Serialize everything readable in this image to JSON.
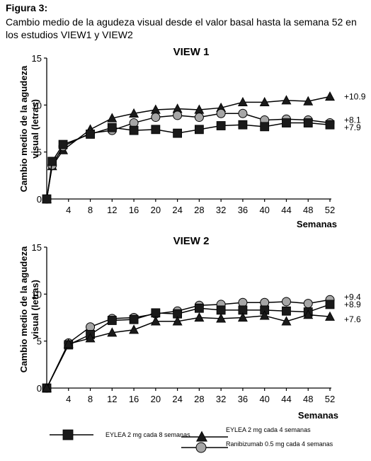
{
  "figure": {
    "label": "Figura 3:",
    "caption": "Cambio medio de la agudeza visual desde el valor basal hasta la semana 52 en los estudios VIEW1 y VIEW2"
  },
  "legend": [
    {
      "key": "eylea8",
      "label": "EYLEA 2 mg cada 8 semanas",
      "marker": "square"
    },
    {
      "key": "eylea4",
      "label": "EYLEA 2 mg cada 4 semanas",
      "marker": "triangle"
    },
    {
      "key": "rani",
      "label": "Ranibizumab 0.5 mg cada 4 semanas",
      "marker": "circle"
    }
  ],
  "colors": {
    "line": "#000000",
    "square": "#1a1a1a",
    "triangle": "#1a1a1a",
    "circle": "#a6a6a6"
  },
  "chart_data": [
    {
      "type": "line",
      "title": "VIEW 1",
      "xlabel": "Semanas",
      "ylabel": "Cambio medio de la agudeza visual (letras)",
      "xlim": [
        0,
        52
      ],
      "ylim": [
        0,
        15
      ],
      "xticks": [
        4,
        8,
        12,
        16,
        20,
        24,
        28,
        32,
        36,
        40,
        44,
        48,
        52
      ],
      "yticks": [
        0,
        5,
        10,
        15
      ],
      "series": [
        {
          "key": "eylea4",
          "marker": "triangle",
          "x": [
            0,
            1,
            3,
            8,
            12,
            16,
            20,
            24,
            28,
            32,
            36,
            40,
            44,
            48,
            52
          ],
          "y": [
            0,
            3.5,
            5.2,
            7.4,
            8.6,
            9.1,
            9.5,
            9.6,
            9.5,
            9.7,
            10.3,
            10.3,
            10.5,
            10.4,
            10.9
          ],
          "end_label": "+10.9"
        },
        {
          "key": "rani",
          "marker": "circle",
          "x": [
            0,
            1,
            3,
            8,
            12,
            16,
            20,
            24,
            28,
            32,
            36,
            40,
            44,
            48,
            52
          ],
          "y": [
            0,
            3.6,
            5.6,
            7.0,
            7.3,
            8.1,
            8.7,
            8.9,
            8.7,
            9.1,
            9.1,
            8.4,
            8.5,
            8.4,
            8.1
          ],
          "end_label": "+8.1"
        },
        {
          "key": "eylea8",
          "marker": "square",
          "x": [
            0,
            1,
            3,
            8,
            12,
            16,
            20,
            24,
            28,
            32,
            36,
            40,
            44,
            48,
            52
          ],
          "y": [
            0,
            4.0,
            5.8,
            6.9,
            7.6,
            7.3,
            7.4,
            7.0,
            7.4,
            7.8,
            7.9,
            7.7,
            8.1,
            8.1,
            7.9
          ],
          "end_label": "+7.9"
        }
      ]
    },
    {
      "type": "line",
      "title": "VIEW 2",
      "xlabel": "Semanas",
      "ylabel": "Cambio medio de la agudeza visual (letras)",
      "xlim": [
        0,
        52
      ],
      "ylim": [
        0,
        15
      ],
      "xticks": [
        4,
        8,
        12,
        16,
        20,
        24,
        28,
        32,
        36,
        40,
        44,
        48,
        52
      ],
      "yticks": [
        0,
        5,
        10,
        15
      ],
      "series": [
        {
          "key": "rani",
          "marker": "circle",
          "x": [
            0,
            4,
            8,
            12,
            16,
            20,
            24,
            28,
            32,
            36,
            40,
            44,
            48,
            52
          ],
          "y": [
            0,
            4.8,
            6.5,
            7.4,
            7.5,
            7.9,
            8.2,
            8.8,
            8.9,
            9.1,
            9.1,
            9.2,
            9.0,
            9.4
          ],
          "end_label": "+9.4"
        },
        {
          "key": "eylea8",
          "marker": "square",
          "x": [
            0,
            4,
            8,
            12,
            16,
            20,
            24,
            28,
            32,
            36,
            40,
            44,
            48,
            52
          ],
          "y": [
            0,
            4.6,
            5.7,
            7.2,
            7.3,
            8.0,
            7.9,
            8.5,
            8.3,
            8.3,
            8.3,
            8.2,
            8.1,
            8.9
          ],
          "end_label": "+8.9"
        },
        {
          "key": "eylea4",
          "marker": "triangle",
          "x": [
            0,
            4,
            8,
            12,
            16,
            20,
            24,
            28,
            32,
            36,
            40,
            44,
            48,
            52
          ],
          "y": [
            0,
            4.7,
            5.3,
            5.9,
            6.2,
            7.1,
            7.1,
            7.5,
            7.4,
            7.5,
            7.7,
            7.1,
            7.8,
            7.6
          ],
          "end_label": "+7.6"
        }
      ]
    }
  ]
}
